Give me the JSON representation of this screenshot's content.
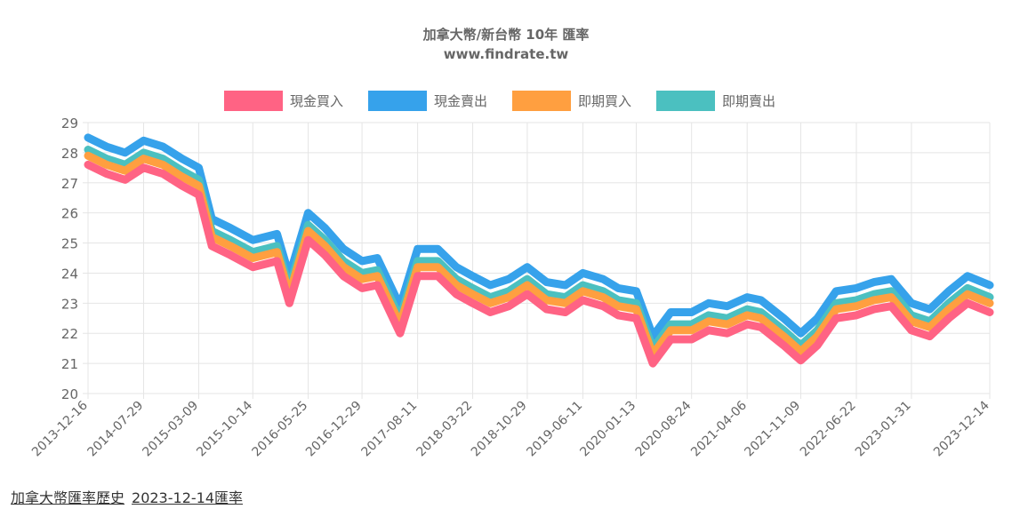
{
  "footer": {
    "history_link": "加拿大幣匯率歷史",
    "date_link": "2023-12-14匯率"
  },
  "chart_data": {
    "type": "area",
    "title": "加拿大幣/新台幣 10年 匯率",
    "subtitle": "www.findrate.tw",
    "xlabel": "",
    "ylabel": "",
    "ylim": [
      20,
      29
    ],
    "yticks": [
      20,
      21,
      22,
      23,
      24,
      25,
      26,
      27,
      28,
      29
    ],
    "grid": true,
    "legend_position": "top",
    "x": [
      "2013-12-16",
      "2014-03-01",
      "2014-05-15",
      "2014-07-29",
      "2014-10-15",
      "2015-01-01",
      "2015-03-09",
      "2015-05-01",
      "2015-07-15",
      "2015-10-14",
      "2016-01-20",
      "2016-03-10",
      "2016-05-25",
      "2016-08-01",
      "2016-10-15",
      "2016-12-29",
      "2017-03-01",
      "2017-06-01",
      "2017-08-11",
      "2017-11-01",
      "2018-01-15",
      "2018-03-22",
      "2018-06-01",
      "2018-08-15",
      "2018-10-29",
      "2019-01-15",
      "2019-04-01",
      "2019-06-11",
      "2019-09-01",
      "2019-11-01",
      "2020-01-13",
      "2020-03-20",
      "2020-06-01",
      "2020-08-24",
      "2020-11-01",
      "2021-01-15",
      "2021-04-06",
      "2021-06-01",
      "2021-09-01",
      "2021-11-09",
      "2022-01-15",
      "2022-04-01",
      "2022-06-22",
      "2022-09-01",
      "2022-11-10",
      "2023-01-31",
      "2023-04-15",
      "2023-07-01",
      "2023-09-15",
      "2023-12-14"
    ],
    "series": [
      {
        "name": "現金買入",
        "color": "#ff6384",
        "values": [
          27.6,
          27.3,
          27.1,
          27.5,
          27.3,
          26.9,
          26.6,
          24.9,
          24.6,
          24.2,
          24.4,
          23.0,
          25.1,
          24.6,
          23.9,
          23.5,
          23.6,
          22.0,
          23.9,
          23.9,
          23.3,
          23.0,
          22.7,
          22.9,
          23.3,
          22.8,
          22.7,
          23.1,
          22.9,
          22.6,
          22.5,
          21.0,
          21.8,
          21.8,
          22.1,
          22.0,
          22.3,
          22.2,
          21.6,
          21.1,
          21.6,
          22.5,
          22.6,
          22.8,
          22.9,
          22.1,
          21.9,
          22.5,
          23.0,
          22.7
        ]
      },
      {
        "name": "現金賣出",
        "color": "#36a2eb",
        "values": [
          28.5,
          28.2,
          28.0,
          28.4,
          28.2,
          27.8,
          27.5,
          25.8,
          25.5,
          25.1,
          25.3,
          23.9,
          26.0,
          25.5,
          24.8,
          24.4,
          24.5,
          22.9,
          24.8,
          24.8,
          24.2,
          23.9,
          23.6,
          23.8,
          24.2,
          23.7,
          23.6,
          24.0,
          23.8,
          23.5,
          23.4,
          21.9,
          22.7,
          22.7,
          23.0,
          22.9,
          23.2,
          23.1,
          22.5,
          22.0,
          22.5,
          23.4,
          23.5,
          23.7,
          23.8,
          23.0,
          22.8,
          23.4,
          23.9,
          23.6
        ]
      },
      {
        "name": "即期買入",
        "color": "#ff9f40",
        "values": [
          27.9,
          27.6,
          27.4,
          27.8,
          27.6,
          27.2,
          26.9,
          25.2,
          24.9,
          24.5,
          24.7,
          23.3,
          25.4,
          24.9,
          24.2,
          23.8,
          23.9,
          22.3,
          24.2,
          24.2,
          23.6,
          23.3,
          23.0,
          23.2,
          23.6,
          23.1,
          23.0,
          23.4,
          23.2,
          22.9,
          22.8,
          21.3,
          22.1,
          22.1,
          22.4,
          22.3,
          22.6,
          22.5,
          21.9,
          21.4,
          21.9,
          22.8,
          22.9,
          23.1,
          23.2,
          22.4,
          22.2,
          22.8,
          23.3,
          23.0
        ]
      },
      {
        "name": "即期賣出",
        "color": "#4bc0c0",
        "values": [
          28.1,
          27.8,
          27.6,
          28.0,
          27.8,
          27.4,
          27.1,
          25.4,
          25.1,
          24.7,
          24.9,
          23.5,
          25.6,
          25.1,
          24.4,
          24.0,
          24.1,
          22.5,
          24.4,
          24.4,
          23.8,
          23.5,
          23.2,
          23.4,
          23.8,
          23.3,
          23.2,
          23.6,
          23.4,
          23.1,
          23.0,
          21.5,
          22.3,
          22.3,
          22.6,
          22.5,
          22.8,
          22.7,
          22.1,
          21.6,
          22.1,
          23.0,
          23.1,
          23.3,
          23.4,
          22.6,
          22.4,
          23.0,
          23.5,
          23.2
        ]
      }
    ],
    "tick_labels": [
      "2013-12-16",
      "2014-07-29",
      "2015-03-09",
      "2015-10-14",
      "2016-05-25",
      "2016-12-29",
      "2017-08-11",
      "2018-03-22",
      "2018-10-29",
      "2019-06-11",
      "2020-01-13",
      "2020-08-24",
      "2021-04-06",
      "2021-11-09",
      "2022-06-22",
      "2023-01-31",
      "2023-12-14"
    ]
  }
}
